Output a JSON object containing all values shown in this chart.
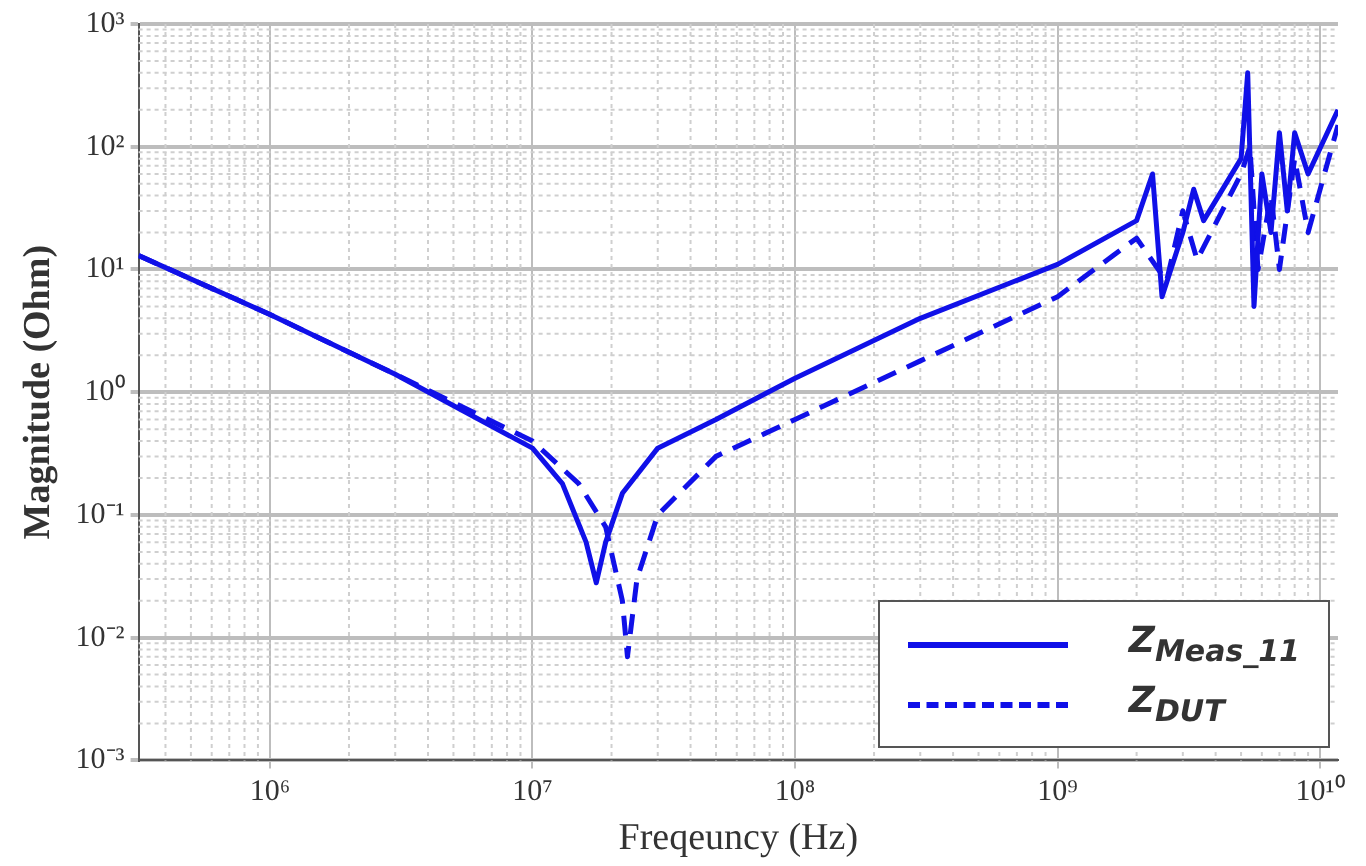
{
  "chart_data": {
    "type": "line",
    "xlabel": "Freqeuncy (Hz)",
    "ylabel": "Magnitude (Ohm)",
    "log": "xy",
    "grid": true,
    "legend": "bottom right",
    "marker": "none",
    "xlim": [
      316000,
      11700000000
    ],
    "ylim": [
      0.001,
      1000
    ],
    "xticks": [
      {
        "value": 1000000,
        "label": "10⁶"
      },
      {
        "value": 10000000,
        "label": "10⁷"
      },
      {
        "value": 100000000,
        "label": "10⁸"
      },
      {
        "value": 1000000000,
        "label": "10⁹"
      },
      {
        "value": 10000000000,
        "label": "10¹⁰"
      }
    ],
    "yticks": [
      {
        "value": 0.001,
        "label": "10⁻³"
      },
      {
        "value": 0.01,
        "label": "10⁻²"
      },
      {
        "value": 0.1,
        "label": "10⁻¹"
      },
      {
        "value": 1,
        "label": "10⁰"
      },
      {
        "value": 10,
        "label": "10¹"
      },
      {
        "value": 100,
        "label": "10²"
      },
      {
        "value": 1000,
        "label": "10³"
      }
    ],
    "series": [
      {
        "name": "Z$_{Meas_11}$",
        "color": "#1010e8",
        "line_style": "solid",
        "x": [
          316000,
          1000000,
          3000000,
          10000000,
          13000000,
          16000000,
          17500000,
          19000000,
          22000000,
          30000000,
          50000000,
          100000000,
          300000000,
          1000000000,
          2000000000,
          2300000000,
          2500000000,
          3000000000,
          3300000000,
          3600000000,
          5000000000,
          5300000000,
          5600000000,
          6000000000,
          6500000000,
          7000000000,
          7500000000,
          8000000000,
          9000000000,
          11700000000
        ],
        "values": [
          13,
          4.3,
          1.4,
          0.35,
          0.18,
          0.06,
          0.028,
          0.06,
          0.15,
          0.35,
          0.6,
          1.3,
          4,
          11,
          25,
          60,
          6,
          20,
          45,
          25,
          80,
          400,
          5,
          60,
          20,
          130,
          30,
          130,
          60,
          200
        ]
      },
      {
        "name": "Z$_{DUT}$",
        "color": "#1010e8",
        "line_style": "dashed",
        "x": [
          316000,
          1000000,
          3000000,
          10000000,
          15000000,
          19000000,
          22000000,
          23000000,
          25000000,
          30000000,
          50000000,
          100000000,
          300000000,
          1000000000,
          2000000000,
          2600000000,
          3000000000,
          3400000000,
          5000000000,
          5400000000,
          5800000000,
          6500000000,
          7000000000,
          8000000000,
          9000000000,
          11700000000
        ],
        "values": [
          13,
          4.3,
          1.4,
          0.4,
          0.18,
          0.08,
          0.02,
          0.007,
          0.03,
          0.1,
          0.3,
          0.6,
          1.8,
          6,
          18,
          8,
          30,
          12,
          60,
          100,
          10,
          40,
          10,
          80,
          20,
          150
        ]
      }
    ]
  }
}
